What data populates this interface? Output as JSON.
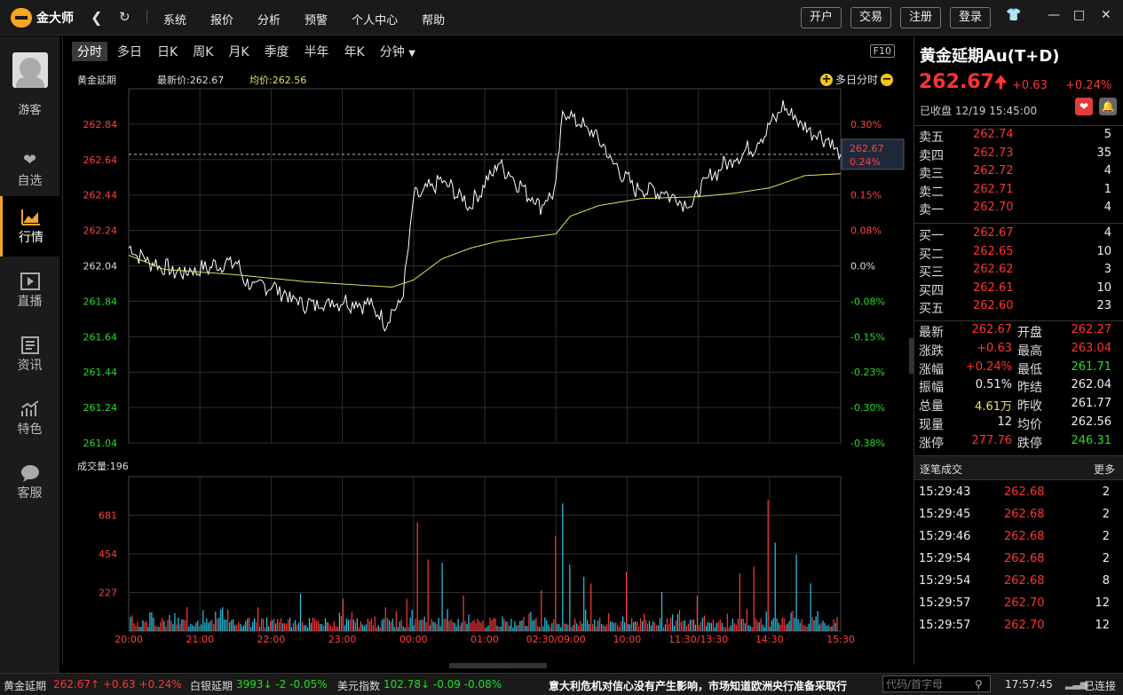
{
  "app": {
    "name": "金大师"
  },
  "top": {
    "menu": [
      "系统",
      "报价",
      "分析",
      "预警",
      "个人中心",
      "帮助"
    ],
    "buttons": [
      "开户",
      "交易",
      "注册",
      "登录"
    ]
  },
  "sidebar": {
    "guest": "游客",
    "items": [
      {
        "label": "自选",
        "icon": "heart-icon"
      },
      {
        "label": "行情",
        "icon": "chart-icon",
        "active": true
      },
      {
        "label": "直播",
        "icon": "play-icon"
      },
      {
        "label": "资讯",
        "icon": "news-icon"
      },
      {
        "label": "特色",
        "icon": "bars-icon"
      },
      {
        "label": "客服",
        "icon": "chat-icon"
      }
    ]
  },
  "chart_tabs": [
    "分时",
    "多日",
    "日K",
    "周K",
    "月K",
    "季度",
    "半年",
    "年K",
    "分钟"
  ],
  "chart_header": {
    "name": "黄金延期",
    "latest": "最新价:262.67",
    "avg": "均价:262.56",
    "f10": "F10",
    "multi_day": "多日分时",
    "volume_label": "成交量:196"
  },
  "chart_data": {
    "type": "line",
    "price_axis": {
      "labels": [
        "262.84",
        "262.64",
        "262.44",
        "262.24",
        "262.04",
        "261.84",
        "261.64",
        "261.44",
        "261.24",
        "261.04"
      ],
      "pct_labels": [
        "0.30%",
        "0.23%",
        "0.15%",
        "0.08%",
        "0.0%",
        "-0.08%",
        "-0.15%",
        "-0.23%",
        "-0.30%",
        "-0.38%"
      ],
      "ylim": [
        261.04,
        263.04
      ],
      "prev_settle": 262.04
    },
    "current_tag": {
      "price": "262.67",
      "pct": "0.24%"
    },
    "x_ticks": [
      "20:00",
      "21:00",
      "22:00",
      "23:00",
      "00:00",
      "01:00",
      "02:30/09:00",
      "10:00",
      "11:30/13:30",
      "14:30",
      "15:30"
    ],
    "price_anchors": [
      [
        0,
        262.14
      ],
      [
        0.03,
        262.06
      ],
      [
        0.07,
        262.0
      ],
      [
        0.1,
        262.02
      ],
      [
        0.13,
        262.05
      ],
      [
        0.15,
        262.06
      ],
      [
        0.17,
        261.92
      ],
      [
        0.2,
        261.93
      ],
      [
        0.23,
        261.85
      ],
      [
        0.25,
        261.82
      ],
      [
        0.3,
        261.84
      ],
      [
        0.34,
        261.82
      ],
      [
        0.36,
        261.72
      ],
      [
        0.385,
        261.86
      ],
      [
        0.4,
        262.42
      ],
      [
        0.44,
        262.52
      ],
      [
        0.48,
        262.38
      ],
      [
        0.52,
        262.62
      ],
      [
        0.56,
        262.45
      ],
      [
        0.58,
        262.38
      ],
      [
        0.6,
        262.48
      ],
      [
        0.61,
        262.92
      ],
      [
        0.66,
        262.76
      ],
      [
        0.68,
        262.62
      ],
      [
        0.71,
        262.48
      ],
      [
        0.75,
        262.46
      ],
      [
        0.79,
        262.38
      ],
      [
        0.81,
        262.52
      ],
      [
        0.84,
        262.62
      ],
      [
        0.88,
        262.72
      ],
      [
        0.92,
        262.94
      ],
      [
        0.95,
        262.82
      ],
      [
        0.98,
        262.76
      ],
      [
        1.0,
        262.67
      ]
    ],
    "avg_anchors": [
      [
        0,
        262.1
      ],
      [
        0.05,
        262.02
      ],
      [
        0.15,
        261.99
      ],
      [
        0.25,
        261.95
      ],
      [
        0.37,
        261.92
      ],
      [
        0.4,
        261.96
      ],
      [
        0.44,
        262.08
      ],
      [
        0.48,
        262.14
      ],
      [
        0.52,
        262.18
      ],
      [
        0.56,
        262.2
      ],
      [
        0.6,
        262.22
      ],
      [
        0.62,
        262.32
      ],
      [
        0.66,
        262.38
      ],
      [
        0.72,
        262.42
      ],
      [
        0.8,
        262.43
      ],
      [
        0.85,
        262.45
      ],
      [
        0.9,
        262.48
      ],
      [
        0.95,
        262.55
      ],
      [
        1.0,
        262.56
      ]
    ],
    "volume_axis": {
      "labels": [
        "681",
        "454",
        "227"
      ],
      "ylim": [
        0,
        908
      ]
    },
    "volume_spikes": [
      [
        0.03,
        110
      ],
      [
        0.08,
        140
      ],
      [
        0.13,
        140
      ],
      [
        0.18,
        140
      ],
      [
        0.24,
        220
      ],
      [
        0.3,
        190
      ],
      [
        0.36,
        140
      ],
      [
        0.39,
        190
      ],
      [
        0.405,
        640
      ],
      [
        0.42,
        420
      ],
      [
        0.44,
        400
      ],
      [
        0.47,
        210
      ],
      [
        0.58,
        240
      ],
      [
        0.6,
        560
      ],
      [
        0.61,
        750
      ],
      [
        0.62,
        390
      ],
      [
        0.64,
        320
      ],
      [
        0.65,
        280
      ],
      [
        0.7,
        350
      ],
      [
        0.75,
        230
      ],
      [
        0.8,
        210
      ],
      [
        0.86,
        340
      ],
      [
        0.88,
        380
      ],
      [
        0.9,
        770
      ],
      [
        0.91,
        520
      ],
      [
        0.94,
        450
      ],
      [
        0.96,
        280
      ]
    ]
  },
  "quote": {
    "title": "黄金延期Au(T+D)",
    "price": "262.67",
    "change": "+0.63",
    "pct": "+0.24%",
    "status": "已收盘  12/19 15:45:00",
    "asks": [
      {
        "name": "卖五",
        "price": "262.74",
        "vol": "5"
      },
      {
        "name": "卖四",
        "price": "262.73",
        "vol": "35"
      },
      {
        "name": "卖三",
        "price": "262.72",
        "vol": "4"
      },
      {
        "name": "卖二",
        "price": "262.71",
        "vol": "1"
      },
      {
        "name": "卖一",
        "price": "262.70",
        "vol": "4"
      }
    ],
    "bids": [
      {
        "name": "买一",
        "price": "262.67",
        "vol": "4"
      },
      {
        "name": "买二",
        "price": "262.65",
        "vol": "10"
      },
      {
        "name": "买三",
        "price": "262.62",
        "vol": "3"
      },
      {
        "name": "买四",
        "price": "262.61",
        "vol": "10"
      },
      {
        "name": "买五",
        "price": "262.60",
        "vol": "23"
      }
    ],
    "stats": [
      {
        "l1": "最新",
        "v1": "262.67",
        "c1": "#ff3333",
        "l2": "开盘",
        "v2": "262.27",
        "c2": "#ff3333"
      },
      {
        "l1": "涨跌",
        "v1": "+0.63",
        "c1": "#ff3333",
        "l2": "最高",
        "v2": "263.04",
        "c2": "#ff3333"
      },
      {
        "l1": "涨幅",
        "v1": "+0.24%",
        "c1": "#ff3333",
        "l2": "最低",
        "v2": "261.71",
        "c2": "#22dd22"
      },
      {
        "l1": "振幅",
        "v1": "0.51%",
        "c1": "#eeeeee",
        "l2": "昨结",
        "v2": "262.04",
        "c2": "#eeeeee"
      },
      {
        "l1": "总量",
        "v1": "4.61万",
        "c1": "#e8e060",
        "l2": "昨收",
        "v2": "261.77",
        "c2": "#eeeeee"
      },
      {
        "l1": "现量",
        "v1": "12",
        "c1": "#eeeeee",
        "l2": "均价",
        "v2": "262.56",
        "c2": "#eeeeee"
      },
      {
        "l1": "涨停",
        "v1": "277.76",
        "c1": "#ff3333",
        "l2": "跌停",
        "v2": "246.31",
        "c2": "#22dd22"
      }
    ],
    "trades_title": "逐笔成交",
    "trades_more": "更多",
    "trades": [
      {
        "time": "15:29:43",
        "price": "262.68",
        "vol": "2"
      },
      {
        "time": "15:29:45",
        "price": "262.68",
        "vol": "2"
      },
      {
        "time": "15:29:46",
        "price": "262.68",
        "vol": "2"
      },
      {
        "time": "15:29:54",
        "price": "262.68",
        "vol": "2"
      },
      {
        "time": "15:29:54",
        "price": "262.68",
        "vol": "8"
      },
      {
        "time": "15:29:57",
        "price": "262.70",
        "vol": "12"
      },
      {
        "time": "15:29:57",
        "price": "262.70",
        "vol": "12"
      }
    ]
  },
  "statusbar": {
    "gold_name": "黄金延期",
    "gold_val": "262.67↑ +0.63 +0.24%",
    "silver_name": "白银延期",
    "silver_val": "3993↓ -2 -0.05%",
    "usd_name": "美元指数",
    "usd_val": "102.78↓ -0.09 -0.08%",
    "news": "意大利危机对信心没有产生影响，市场知道欧洲央行准备采取行",
    "search_placeholder": "代码/首字母",
    "time": "17:57:45",
    "conn": "已连接"
  }
}
